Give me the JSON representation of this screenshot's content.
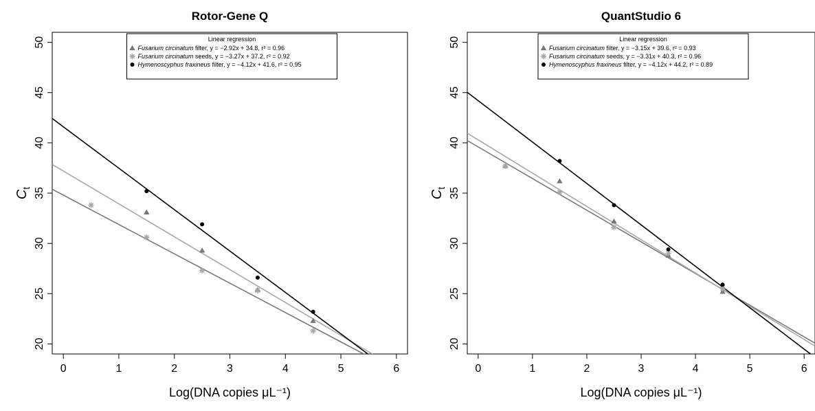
{
  "figure": {
    "xlabel": "Log(DNA copies μL⁻¹)",
    "ylabel_main": "C",
    "ylabel_sub": "t"
  },
  "chart_data": [
    {
      "type": "scatter",
      "title": "Rotor-Gene Q",
      "xlabel": "Log(DNA copies μL⁻¹)",
      "ylabel": "Ct",
      "xlim": [
        -0.2,
        6.2
      ],
      "ylim": [
        19,
        51
      ],
      "xticks": [
        0,
        1,
        2,
        3,
        4,
        5,
        6
      ],
      "yticks": [
        20,
        25,
        30,
        35,
        40,
        45,
        50
      ],
      "grid": false,
      "legend": {
        "position": "top-center",
        "title": "Linear regression",
        "entries": [
          {
            "italic": "Fusarium circinatum",
            "text": " filter, y = −2.92x + 34.8, r² = 0.96"
          },
          {
            "italic": "Fusarium circinatum",
            "text": " seeds, y = −3.27x + 37.2, r² = 0.92"
          },
          {
            "italic": "Hymenoscyphus fraxineus",
            "text": " filter, y = −4.12x + 41.6, r² = 0.95"
          }
        ]
      },
      "series": [
        {
          "color": "#777777",
          "marker": "triangle",
          "slope": -2.92,
          "intercept": 34.8,
          "x": [
            1.5,
            2.5,
            3.5,
            4.5
          ],
          "y": [
            33.1,
            29.3,
            25.4,
            22.3
          ]
        },
        {
          "color": "#a8a8a8",
          "marker": "asterisk",
          "slope": -3.27,
          "intercept": 37.2,
          "x": [
            0.5,
            1.5,
            2.5,
            3.5,
            4.5
          ],
          "y": [
            33.8,
            30.6,
            27.3,
            25.3,
            21.3
          ]
        },
        {
          "color": "#000000",
          "marker": "circle",
          "slope": -4.12,
          "intercept": 41.6,
          "x": [
            1.5,
            2.5,
            3.5,
            4.5
          ],
          "y": [
            35.2,
            31.9,
            26.6,
            23.2
          ]
        }
      ]
    },
    {
      "type": "scatter",
      "title": "QuantStudio 6",
      "xlabel": "Log(DNA copies μL⁻¹)",
      "ylabel": "Ct",
      "xlim": [
        -0.2,
        6.2
      ],
      "ylim": [
        19,
        51
      ],
      "xticks": [
        0,
        1,
        2,
        3,
        4,
        5,
        6
      ],
      "yticks": [
        20,
        25,
        30,
        35,
        40,
        45,
        50
      ],
      "grid": false,
      "legend": {
        "position": "top-center",
        "title": "Linear regression",
        "entries": [
          {
            "italic": "Fusarium circinatum",
            "text": " filter, y = −3.15x + 39.6, r² = 0.93"
          },
          {
            "italic": "Fusarium circinatum",
            "text": " seeds, y = −3.31x + 40.3, r² = 0.96"
          },
          {
            "italic": "Hymenoscyphus fraxineus",
            "text": " filter, y = −4.12x + 44.2, r² = 0.89"
          }
        ]
      },
      "series": [
        {
          "color": "#777777",
          "marker": "triangle",
          "slope": -3.15,
          "intercept": 39.6,
          "x": [
            0.5,
            1.5,
            2.5,
            3.5,
            4.5
          ],
          "y": [
            37.7,
            36.2,
            32.2,
            28.8,
            25.2
          ]
        },
        {
          "color": "#a8a8a8",
          "marker": "asterisk",
          "slope": -3.31,
          "intercept": 40.3,
          "x": [
            0.5,
            1.5,
            2.5,
            3.5,
            4.5
          ],
          "y": [
            37.7,
            35.1,
            31.6,
            29.0,
            25.5
          ]
        },
        {
          "color": "#000000",
          "marker": "circle",
          "slope": -4.12,
          "intercept": 44.2,
          "x": [
            1.5,
            2.5,
            3.5,
            4.5
          ],
          "y": [
            38.2,
            33.8,
            29.4,
            25.9
          ]
        }
      ]
    }
  ]
}
